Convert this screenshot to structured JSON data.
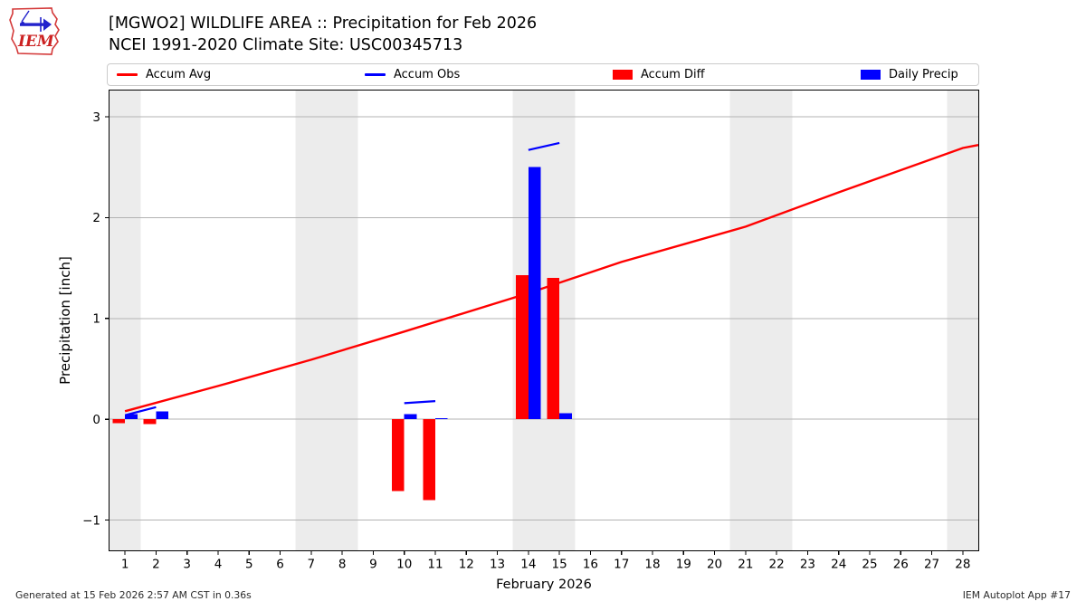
{
  "logo": {
    "text": "IEM"
  },
  "header": {
    "title_line1": "[MGWO2] WILDLIFE AREA :: Precipitation for Feb 2026",
    "title_line2": "NCEI 1991-2020 Climate Site: USC00345713"
  },
  "legend": {
    "items": [
      {
        "label": "Accum Avg",
        "swatch": "line",
        "color": "#ff0000"
      },
      {
        "label": "Accum Obs",
        "swatch": "line",
        "color": "#0000ff"
      },
      {
        "label": "Accum Diff",
        "swatch": "rect",
        "color": "#ff0000"
      },
      {
        "label": "Daily Precip",
        "swatch": "rect",
        "color": "#0000ff"
      }
    ]
  },
  "footer": {
    "left": "Generated at 15 Feb 2026 2:57 AM CST in 0.36s",
    "right": "IEM Autoplot App #17"
  },
  "chart_data": {
    "type": "mixed-line-bar",
    "title": "[MGWO2] WILDLIFE AREA :: Precipitation for Feb 2026",
    "subtitle": "NCEI 1991-2020 Climate Site: USC00345713",
    "xlabel": "February 2026",
    "ylabel": "Precipitation [inch]",
    "xlim": [
      0.5,
      28.5
    ],
    "ylim": [
      -1.3,
      3.26
    ],
    "xticks": [
      1,
      2,
      3,
      4,
      5,
      6,
      7,
      8,
      9,
      10,
      11,
      12,
      13,
      14,
      15,
      16,
      17,
      18,
      19,
      20,
      21,
      22,
      23,
      24,
      25,
      26,
      27,
      28
    ],
    "yticks": [
      -1,
      0,
      1,
      2,
      3
    ],
    "ytick_labels": [
      "−1",
      "0",
      "1",
      "2",
      "3"
    ],
    "grid": "horizontal",
    "legend_position": "top",
    "weekend_shade_days": [
      1,
      7,
      8,
      14,
      15,
      21,
      22,
      28
    ],
    "colors": {
      "accum_avg": "#ff0000",
      "accum_obs": "#0000ff",
      "accum_diff": "#ff0000",
      "daily_precip": "#0000ff",
      "shade": "#ececec",
      "grid": "#b3b3b3",
      "spine": "#000000"
    },
    "bar_width_days": 0.4,
    "series": [
      {
        "name": "Accum Avg",
        "type": "line",
        "color": "#ff0000",
        "points": [
          [
            1,
            0.08
          ],
          [
            4,
            0.33
          ],
          [
            7,
            0.59
          ],
          [
            10,
            0.87
          ],
          [
            14,
            1.25
          ],
          [
            17,
            1.56
          ],
          [
            21,
            1.91
          ],
          [
            24,
            2.25
          ],
          [
            28,
            2.69
          ],
          [
            28.5,
            2.72
          ]
        ]
      },
      {
        "name": "Accum Obs",
        "type": "line-segments",
        "color": "#0000ff",
        "segments": [
          [
            [
              1,
              0.04
            ],
            [
              2,
              0.12
            ]
          ],
          [
            [
              10,
              0.16
            ],
            [
              11,
              0.18
            ]
          ],
          [
            [
              14,
              2.67
            ],
            [
              15,
              2.74
            ]
          ]
        ]
      },
      {
        "name": "Accum Diff",
        "type": "bar",
        "color": "#ff0000",
        "offset": -0.4,
        "values": [
          [
            1,
            -0.04
          ],
          [
            2,
            -0.05
          ],
          [
            10,
            -0.71
          ],
          [
            11,
            -0.8
          ],
          [
            14,
            1.43
          ],
          [
            15,
            1.4
          ]
        ]
      },
      {
        "name": "Daily Precip",
        "type": "bar",
        "color": "#0000ff",
        "offset": 0,
        "values": [
          [
            1,
            0.05
          ],
          [
            2,
            0.08
          ],
          [
            10,
            0.05
          ],
          [
            11,
            0.005
          ],
          [
            14,
            2.5
          ],
          [
            15,
            0.06
          ]
        ]
      }
    ]
  }
}
